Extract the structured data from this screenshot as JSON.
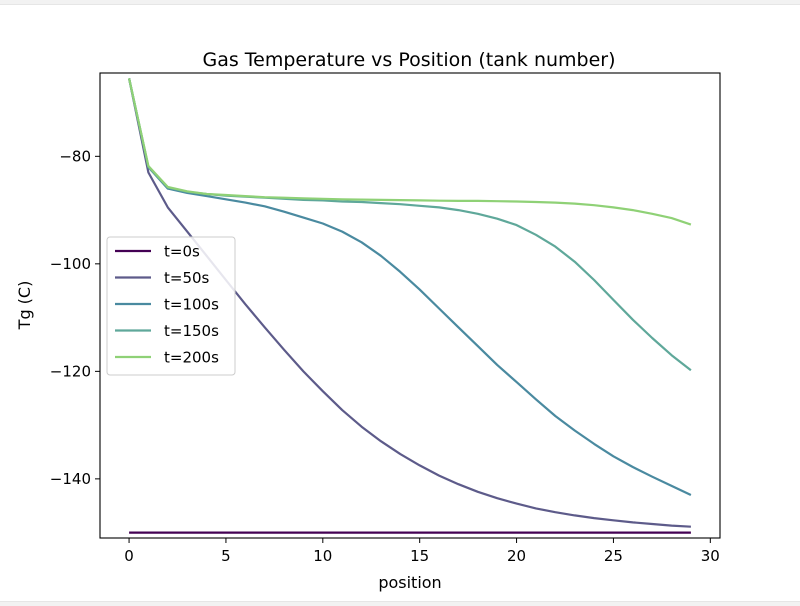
{
  "chart_data": {
    "type": "line",
    "title": "Gas Temperature vs Position (tank number)",
    "xlabel": "position",
    "ylabel": "Tg (C)",
    "xlim": [
      -1.5,
      30.5
    ],
    "ylim": [
      -151,
      -64.5
    ],
    "xticks": [
      0,
      5,
      10,
      15,
      20,
      25,
      30
    ],
    "yticks": [
      -80,
      -100,
      -120,
      -140
    ],
    "grid": false,
    "legend_position": "center-left",
    "x": [
      0,
      1,
      2,
      3,
      4,
      5,
      6,
      7,
      8,
      9,
      10,
      11,
      12,
      13,
      14,
      15,
      16,
      17,
      18,
      19,
      20,
      21,
      22,
      23,
      24,
      25,
      26,
      27,
      28,
      29
    ],
    "series": [
      {
        "name": "t=0s",
        "color": "#440154",
        "values": [
          -150,
          -150,
          -150,
          -150,
          -150,
          -150,
          -150,
          -150,
          -150,
          -150,
          -150,
          -150,
          -150,
          -150,
          -150,
          -150,
          -150,
          -150,
          -150,
          -150,
          -150,
          -150,
          -150,
          -150,
          -150,
          -150,
          -150,
          -150,
          -150,
          -150
        ]
      },
      {
        "name": "t=50s",
        "color": "#5d5b8a",
        "values": [
          -65.5,
          -83,
          -89.5,
          -94,
          -98.5,
          -103,
          -107.5,
          -111.8,
          -116,
          -120,
          -123.7,
          -127.2,
          -130.3,
          -133,
          -135.4,
          -137.5,
          -139.4,
          -141,
          -142.4,
          -143.6,
          -144.6,
          -145.5,
          -146.2,
          -146.8,
          -147.3,
          -147.7,
          -148.1,
          -148.4,
          -148.7,
          -148.9
        ]
      },
      {
        "name": "t=100s",
        "color": "#4a8aa0",
        "values": [
          -65.5,
          -82,
          -86,
          -86.8,
          -87.4,
          -88,
          -88.6,
          -89.3,
          -90.3,
          -91.4,
          -92.5,
          -94,
          -96,
          -98.5,
          -101.5,
          -104.8,
          -108.3,
          -111.8,
          -115.3,
          -118.8,
          -122,
          -125.2,
          -128.3,
          -131,
          -133.5,
          -135.8,
          -137.8,
          -139.6,
          -141.3,
          -143
        ]
      },
      {
        "name": "t=150s",
        "color": "#5fa89a",
        "values": [
          -65.5,
          -82,
          -85.8,
          -86.6,
          -87,
          -87.3,
          -87.5,
          -87.7,
          -87.9,
          -88.1,
          -88.2,
          -88.4,
          -88.5,
          -88.7,
          -88.9,
          -89.2,
          -89.5,
          -90,
          -90.7,
          -91.6,
          -92.8,
          -94.6,
          -96.8,
          -99.6,
          -103,
          -106.7,
          -110.4,
          -113.8,
          -117,
          -119.8
        ]
      },
      {
        "name": "t=200s",
        "color": "#8fd176",
        "values": [
          -65.5,
          -81.8,
          -85.7,
          -86.5,
          -87,
          -87.2,
          -87.4,
          -87.6,
          -87.7,
          -87.8,
          -87.9,
          -88,
          -88.05,
          -88.1,
          -88.15,
          -88.2,
          -88.25,
          -88.3,
          -88.3,
          -88.35,
          -88.4,
          -88.5,
          -88.6,
          -88.8,
          -89.1,
          -89.5,
          -90,
          -90.7,
          -91.5,
          -92.7
        ]
      }
    ]
  }
}
